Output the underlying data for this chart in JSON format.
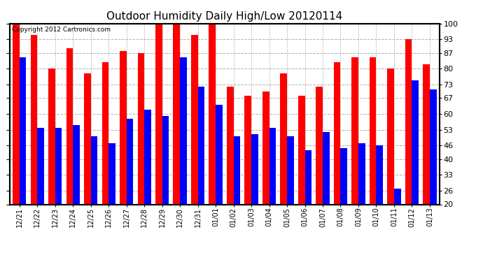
{
  "title": "Outdoor Humidity Daily High/Low 20120114",
  "copyright_text": "Copyright 2012 Cartronics.com",
  "categories": [
    "12/21",
    "12/22",
    "12/23",
    "12/24",
    "12/25",
    "12/26",
    "12/27",
    "12/28",
    "12/29",
    "12/30",
    "12/31",
    "01/01",
    "01/02",
    "01/03",
    "01/04",
    "01/05",
    "01/06",
    "01/07",
    "01/08",
    "01/09",
    "01/10",
    "01/11",
    "01/12",
    "01/13"
  ],
  "highs": [
    100,
    95,
    80,
    89,
    78,
    83,
    88,
    87,
    100,
    100,
    95,
    100,
    72,
    68,
    70,
    78,
    68,
    72,
    83,
    85,
    85,
    80,
    93,
    82
  ],
  "lows": [
    85,
    54,
    54,
    55,
    50,
    47,
    58,
    62,
    59,
    85,
    72,
    64,
    50,
    51,
    54,
    50,
    44,
    52,
    45,
    47,
    46,
    27,
    75,
    71
  ],
  "high_color": "#ff0000",
  "low_color": "#0000ff",
  "bg_color": "#ffffff",
  "grid_color": "#b0b0b0",
  "ylim_min": 20,
  "ylim_max": 100,
  "yticks": [
    20,
    26,
    33,
    40,
    46,
    53,
    60,
    67,
    73,
    80,
    87,
    93,
    100
  ],
  "title_fontsize": 11,
  "bar_width": 0.38
}
